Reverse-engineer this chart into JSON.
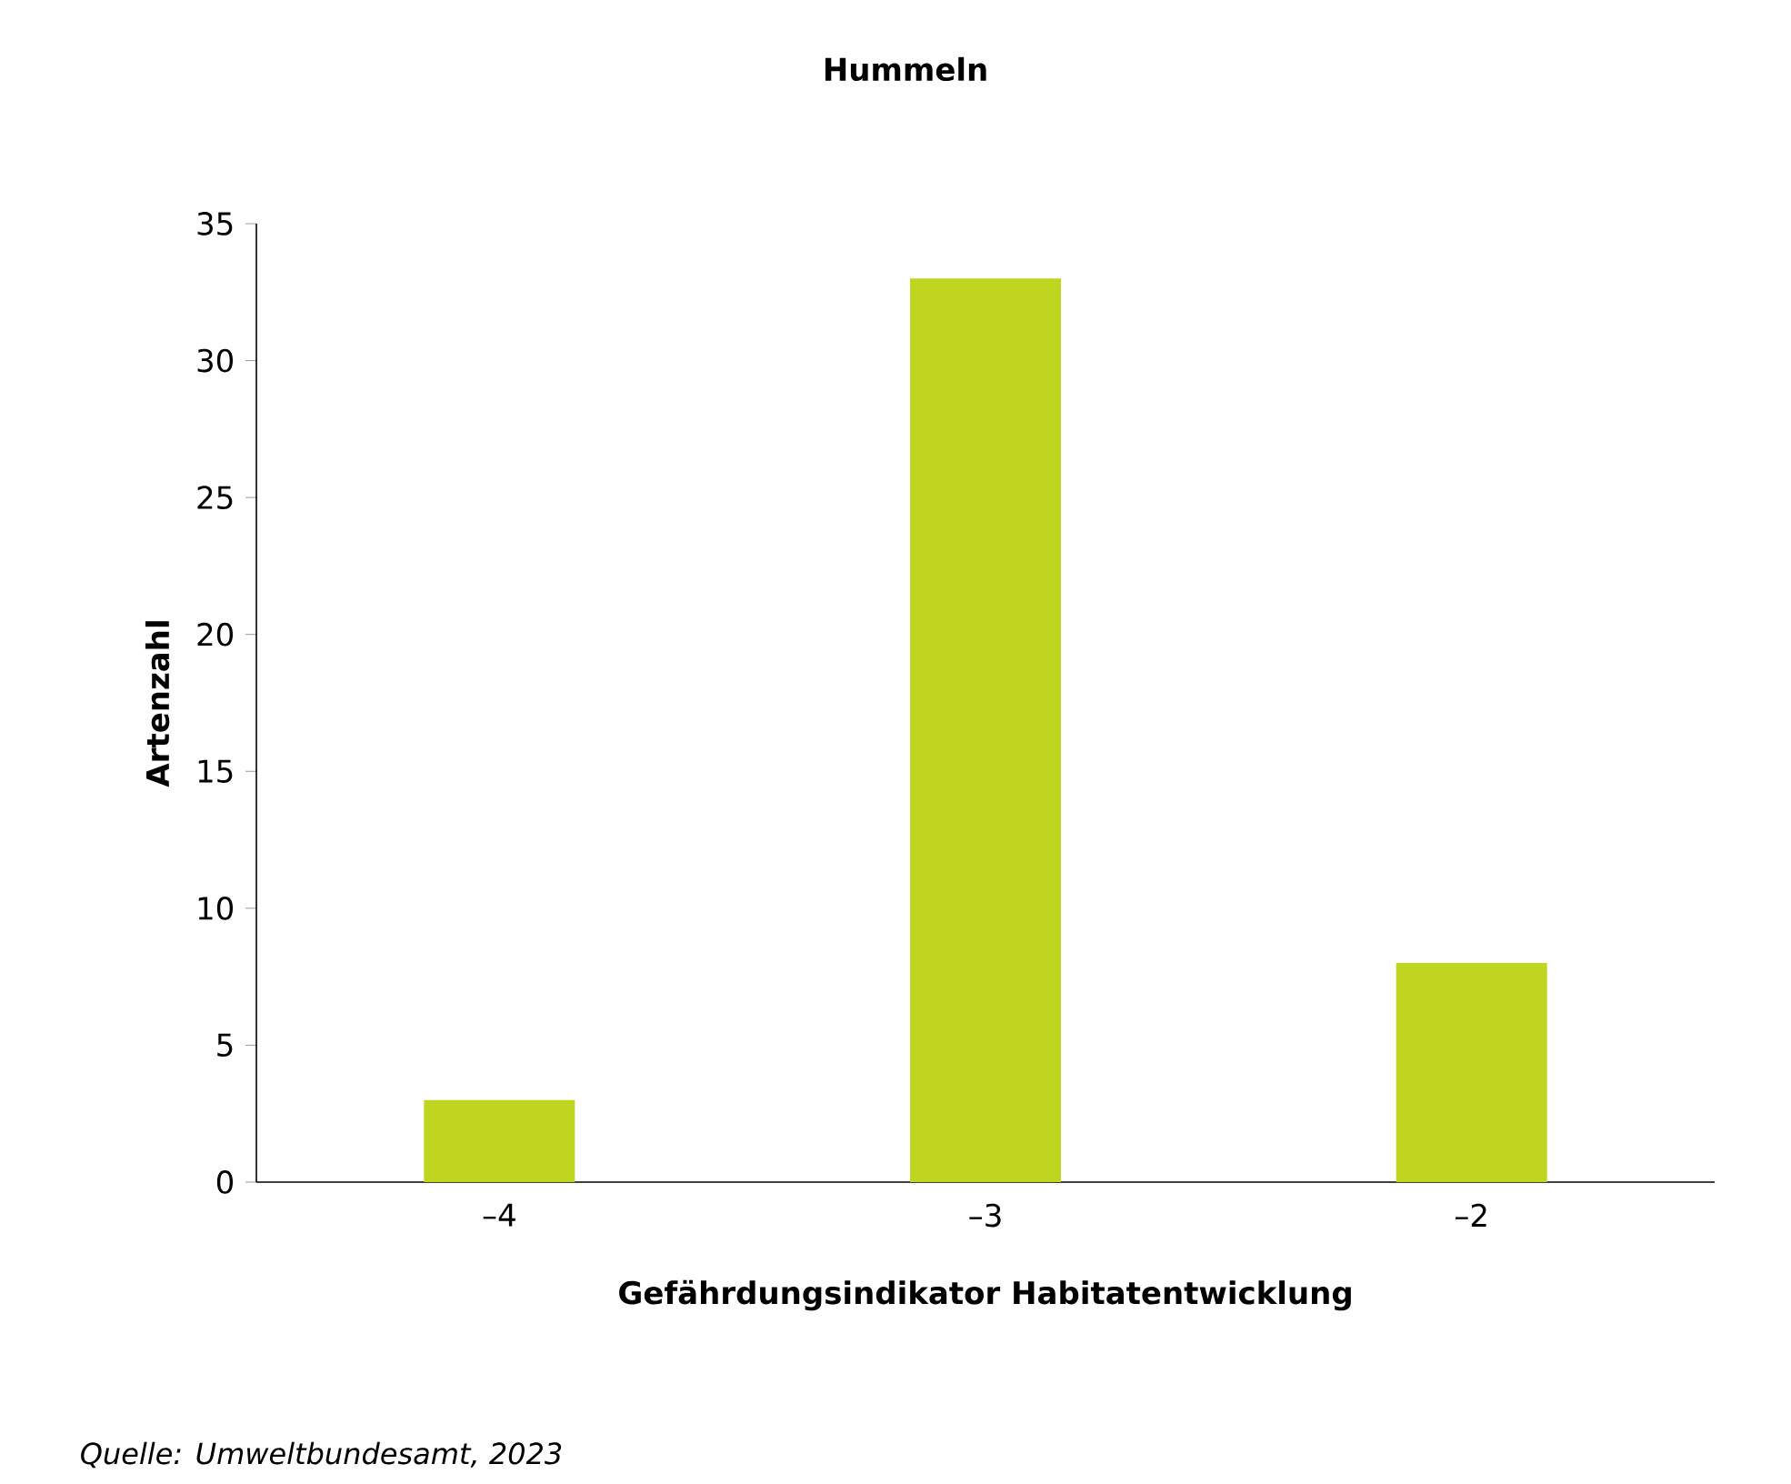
{
  "chart_data": {
    "type": "bar",
    "title": "Hummeln",
    "xlabel": "Gefährdungsindikator Habitatentwicklung",
    "ylabel": "Artenzahl",
    "categories": [
      "–4",
      "–3",
      "–2"
    ],
    "values": [
      3,
      33,
      8
    ],
    "color": "#bfd520",
    "ylim": [
      0,
      35
    ],
    "yticks": [
      0,
      5,
      10,
      15,
      20,
      25,
      30,
      35
    ],
    "annotations": [
      "*Quelle: Umweltbundesamt, 2023*"
    ]
  }
}
